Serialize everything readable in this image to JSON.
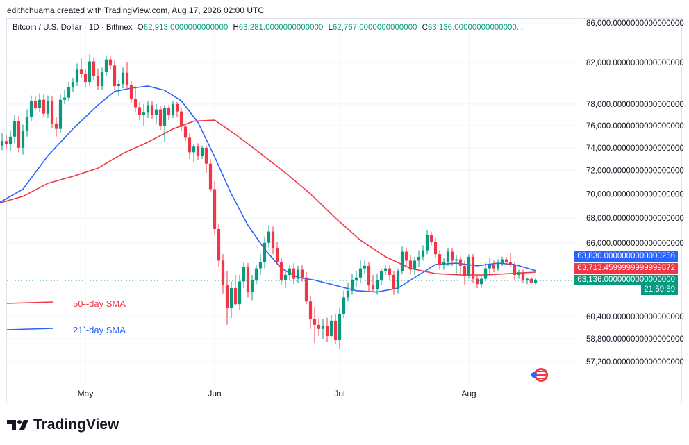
{
  "attribution": "edithchuama created with TradingView.com, Aug 17, 2026 02:00 UTC",
  "symbol": "Bitcoin / U.S. Dollar · 1D · Bitfinex",
  "ohlc": {
    "o_label": "O",
    "o_value": "62,913.0000000000000",
    "h_label": "H",
    "h_value": "63,281.0000000000000",
    "l_label": "L",
    "l_value": "62,767.0000000000000",
    "c_label": "C",
    "c_value": "63,136.00000000000000..."
  },
  "legend": {
    "sma50_label": "50--day SMA",
    "sma21_label": "21`-day SMA"
  },
  "price_boxes": {
    "sma21_value": "63,830.0000000000000256",
    "sma50_value": "63,713.4599999999999872",
    "last_price": "63,136.0000000000000000",
    "countdown": "21:59:59"
  },
  "brand": "TradingView",
  "colors": {
    "up": "#089981",
    "down": "#f23645",
    "sma50": "#f23645",
    "sma21": "#2962ff",
    "grid": "#f0f3fa",
    "axis_text": "#131722"
  },
  "chart_data": {
    "type": "candlestick",
    "y_axis_ticks": [
      "86,000.0000000000000000",
      "82,000.0000000000000000",
      "78,000.0000000000000000",
      "76,000.0000000000000000",
      "74,000.0000000000000000",
      "72,000.0000000000000000",
      "70,000.0000000000000000",
      "68,000.0000000000000000",
      "66,000.0000000000000000",
      "60,400.0000000000000000",
      "58,800.0000000000000000",
      "57,200.0000000000000000"
    ],
    "y_axis_tick_values": [
      86000,
      82000,
      78000,
      76000,
      74000,
      72000,
      70000,
      68000,
      66000,
      60400,
      58800,
      57200
    ],
    "x_axis_ticks": [
      "May",
      "Jun",
      "Jul",
      "Aug"
    ],
    "x_axis_tick_dates": [
      "2026-05-01",
      "2026-06-01",
      "2026-07-01",
      "2026-08-01"
    ],
    "scale": "log",
    "candles": [
      [
        "2026-04-10",
        70500,
        74800,
        70200,
        74200
      ],
      [
        "2026-04-11",
        74200,
        75300,
        73800,
        74600
      ],
      [
        "2026-04-12",
        74600,
        75100,
        73900,
        74300
      ],
      [
        "2026-04-13",
        74300,
        75600,
        73700,
        75000
      ],
      [
        "2026-04-14",
        75000,
        77000,
        74400,
        76400
      ],
      [
        "2026-04-15",
        76400,
        76900,
        73600,
        74000
      ],
      [
        "2026-04-16",
        74000,
        76100,
        73400,
        75500
      ],
      [
        "2026-04-17",
        75500,
        77500,
        75000,
        76800
      ],
      [
        "2026-04-18",
        76800,
        78800,
        76400,
        78300
      ],
      [
        "2026-04-19",
        78300,
        78700,
        77400,
        77600
      ],
      [
        "2026-04-20",
        77600,
        79000,
        77200,
        78400
      ],
      [
        "2026-04-21",
        78400,
        78900,
        76800,
        77100
      ],
      [
        "2026-04-22",
        77100,
        78800,
        76700,
        78300
      ],
      [
        "2026-04-23",
        78300,
        78700,
        75800,
        76200
      ],
      [
        "2026-04-24",
        76200,
        76800,
        75000,
        75700
      ],
      [
        "2026-04-25",
        75700,
        78900,
        75300,
        78400
      ],
      [
        "2026-04-26",
        78400,
        79300,
        78000,
        78600
      ],
      [
        "2026-04-27",
        78600,
        80100,
        78300,
        79600
      ],
      [
        "2026-04-28",
        79600,
        80500,
        79100,
        80100
      ],
      [
        "2026-04-29",
        80100,
        81900,
        79700,
        81300
      ],
      [
        "2026-04-30",
        81300,
        82400,
        80500,
        80900
      ],
      [
        "2026-05-01",
        80900,
        81400,
        79600,
        80100
      ],
      [
        "2026-05-02",
        80100,
        82800,
        79700,
        82100
      ],
      [
        "2026-05-03",
        82100,
        82500,
        80300,
        80700
      ],
      [
        "2026-05-04",
        80700,
        81400,
        79300,
        79700
      ],
      [
        "2026-05-05",
        79700,
        81500,
        79300,
        81100
      ],
      [
        "2026-05-06",
        81100,
        82700,
        80700,
        82300
      ],
      [
        "2026-05-07",
        82300,
        82600,
        81300,
        81700
      ],
      [
        "2026-05-08",
        81700,
        82200,
        79300,
        79700
      ],
      [
        "2026-05-09",
        79700,
        80300,
        78800,
        79900
      ],
      [
        "2026-05-10",
        79900,
        81500,
        79500,
        81000
      ],
      [
        "2026-05-11",
        81000,
        82000,
        79500,
        79800
      ],
      [
        "2026-05-12",
        79800,
        80200,
        78100,
        78500
      ],
      [
        "2026-05-13",
        78500,
        79700,
        77300,
        77700
      ],
      [
        "2026-05-14",
        77700,
        78200,
        76500,
        77000
      ],
      [
        "2026-05-15",
        77000,
        78000,
        76000,
        77200
      ],
      [
        "2026-05-16",
        77200,
        78300,
        76700,
        77900
      ],
      [
        "2026-05-17",
        77900,
        78300,
        76600,
        77000
      ],
      [
        "2026-05-18",
        77000,
        78000,
        76200,
        77500
      ],
      [
        "2026-05-19",
        77500,
        77800,
        75600,
        76000
      ],
      [
        "2026-05-20",
        76000,
        77900,
        74500,
        77600
      ],
      [
        "2026-05-21",
        77600,
        77900,
        76500,
        77000
      ],
      [
        "2026-05-22",
        77000,
        78300,
        76700,
        78000
      ],
      [
        "2026-05-23",
        78000,
        78200,
        76800,
        77300
      ],
      [
        "2026-05-24",
        77300,
        77600,
        75500,
        75900
      ],
      [
        "2026-05-25",
        75900,
        76200,
        74600,
        74900
      ],
      [
        "2026-05-26",
        74900,
        75300,
        73000,
        73600
      ],
      [
        "2026-05-27",
        73600,
        74300,
        72700,
        74100
      ],
      [
        "2026-05-28",
        74100,
        74400,
        72900,
        73300
      ],
      [
        "2026-05-29",
        73300,
        74200,
        73000,
        74000
      ],
      [
        "2026-05-30",
        74000,
        74200,
        71800,
        72600
      ],
      [
        "2026-05-31",
        72600,
        73000,
        70200,
        70400
      ],
      [
        "2026-06-01",
        70400,
        71100,
        66600,
        67100
      ],
      [
        "2026-06-02",
        67100,
        67500,
        64100,
        64600
      ],
      [
        "2026-06-03",
        64600,
        65100,
        62100,
        62700
      ],
      [
        "2026-06-04",
        62700,
        63800,
        59800,
        61000
      ],
      [
        "2026-06-05",
        61000,
        63000,
        60300,
        62500
      ],
      [
        "2026-06-06",
        62500,
        63500,
        61200,
        61300
      ],
      [
        "2026-06-07",
        61300,
        63500,
        60900,
        63000
      ],
      [
        "2026-06-08",
        63000,
        64500,
        62500,
        64100
      ],
      [
        "2026-06-09",
        64100,
        64400,
        61800,
        62200
      ],
      [
        "2026-06-10",
        62200,
        63500,
        61600,
        63100
      ],
      [
        "2026-06-11",
        63100,
        64300,
        62800,
        64000
      ],
      [
        "2026-06-12",
        64000,
        65100,
        63500,
        64500
      ],
      [
        "2026-06-13",
        64500,
        66500,
        64000,
        66000
      ],
      [
        "2026-06-14",
        66000,
        67400,
        65600,
        66900
      ],
      [
        "2026-06-15",
        66900,
        67300,
        65100,
        65600
      ],
      [
        "2026-06-16",
        65600,
        66100,
        64300,
        64500
      ],
      [
        "2026-06-17",
        64500,
        64800,
        62700,
        63100
      ],
      [
        "2026-06-18",
        63100,
        63900,
        62500,
        63500
      ],
      [
        "2026-06-19",
        63500,
        64300,
        63100,
        64000
      ],
      [
        "2026-06-20",
        64000,
        64400,
        62800,
        63200
      ],
      [
        "2026-06-21",
        63200,
        64200,
        62900,
        63900
      ],
      [
        "2026-06-22",
        63900,
        64300,
        63000,
        63300
      ],
      [
        "2026-06-23",
        63300,
        63700,
        61300,
        61500
      ],
      [
        "2026-06-24",
        61500,
        61900,
        59500,
        60200
      ],
      [
        "2026-06-25",
        60200,
        61100,
        58500,
        59800
      ],
      [
        "2026-06-26",
        59800,
        60300,
        59000,
        59500
      ],
      [
        "2026-06-27",
        59500,
        60200,
        58800,
        59700
      ],
      [
        "2026-06-28",
        59700,
        60300,
        58600,
        59000
      ],
      [
        "2026-06-29",
        59000,
        60500,
        58900,
        60100
      ],
      [
        "2026-06-30",
        60100,
        60600,
        58400,
        58700
      ],
      [
        "2026-07-01",
        58700,
        61000,
        58100,
        60600
      ],
      [
        "2026-07-02",
        60600,
        62300,
        60300,
        61800
      ],
      [
        "2026-07-03",
        61800,
        62900,
        61500,
        62300
      ],
      [
        "2026-07-04",
        62300,
        63600,
        62000,
        63100
      ],
      [
        "2026-07-05",
        63100,
        63800,
        62600,
        63300
      ],
      [
        "2026-07-06",
        63300,
        64600,
        62900,
        64000
      ],
      [
        "2026-07-07",
        64000,
        64600,
        63600,
        64200
      ],
      [
        "2026-07-08",
        64200,
        64500,
        62200,
        62700
      ],
      [
        "2026-07-09",
        62700,
        63500,
        62200,
        62400
      ],
      [
        "2026-07-10",
        62400,
        63600,
        62000,
        63100
      ],
      [
        "2026-07-11",
        63100,
        64000,
        62700,
        63800
      ],
      [
        "2026-07-12",
        63800,
        64300,
        63500,
        64000
      ],
      [
        "2026-07-13",
        64000,
        64300,
        63100,
        63500
      ],
      [
        "2026-07-14",
        63500,
        63800,
        62000,
        62400
      ],
      [
        "2026-07-15",
        62400,
        64000,
        62100,
        63800
      ],
      [
        "2026-07-16",
        63800,
        65700,
        63600,
        65300
      ],
      [
        "2026-07-17",
        65300,
        65600,
        64200,
        64600
      ],
      [
        "2026-07-18",
        64600,
        65000,
        63600,
        63900
      ],
      [
        "2026-07-19",
        63900,
        64900,
        63500,
        64600
      ],
      [
        "2026-07-20",
        64600,
        65400,
        64100,
        64900
      ],
      [
        "2026-07-21",
        64900,
        65800,
        64600,
        65400
      ],
      [
        "2026-07-22",
        65400,
        67000,
        65100,
        66600
      ],
      [
        "2026-07-23",
        66600,
        66900,
        65800,
        66100
      ],
      [
        "2026-07-24",
        66100,
        66400,
        64800,
        65100
      ],
      [
        "2026-07-25",
        65100,
        65400,
        63900,
        64300
      ],
      [
        "2026-07-26",
        64300,
        64800,
        63900,
        64500
      ],
      [
        "2026-07-27",
        64500,
        65600,
        64200,
        65300
      ],
      [
        "2026-07-28",
        65300,
        65600,
        64200,
        64600
      ],
      [
        "2026-07-29",
        64600,
        65000,
        63500,
        64700
      ],
      [
        "2026-07-30",
        64700,
        64900,
        63600,
        64200
      ],
      [
        "2026-07-31",
        64200,
        64600,
        62700,
        63400
      ],
      [
        "2026-08-01",
        63400,
        65100,
        63200,
        64900
      ],
      [
        "2026-08-02",
        64900,
        65100,
        62900,
        63200
      ],
      [
        "2026-08-03",
        63200,
        63500,
        62500,
        62800
      ],
      [
        "2026-08-04",
        62800,
        63500,
        62500,
        63200
      ],
      [
        "2026-08-05",
        63200,
        64400,
        63000,
        64000
      ],
      [
        "2026-08-06",
        64000,
        64800,
        63600,
        64300
      ],
      [
        "2026-08-07",
        64300,
        64600,
        63700,
        64000
      ],
      [
        "2026-08-08",
        64000,
        64700,
        63800,
        64400
      ],
      [
        "2026-08-09",
        64400,
        64900,
        64200,
        64700
      ],
      [
        "2026-08-10",
        64700,
        64900,
        64300,
        64500
      ],
      [
        "2026-08-11",
        64500,
        65200,
        64100,
        64300
      ],
      [
        "2026-08-12",
        64300,
        64500,
        63100,
        63500
      ],
      [
        "2026-08-13",
        63500,
        63900,
        63200,
        63700
      ],
      [
        "2026-08-14",
        63700,
        63900,
        62900,
        63100
      ],
      [
        "2026-08-15",
        63100,
        63300,
        62800,
        63200
      ],
      [
        "2026-08-16",
        63200,
        63300,
        62900,
        62913
      ],
      [
        "2026-08-17",
        62913,
        63281,
        62767,
        63136
      ]
    ],
    "sma21": [
      [
        "2026-04-10",
        69200
      ],
      [
        "2026-04-16",
        70400
      ],
      [
        "2026-04-22",
        73300
      ],
      [
        "2026-04-28",
        75700
      ],
      [
        "2026-05-04",
        77900
      ],
      [
        "2026-05-08",
        79200
      ],
      [
        "2026-05-12",
        79500
      ],
      [
        "2026-05-16",
        79700
      ],
      [
        "2026-05-20",
        79300
      ],
      [
        "2026-05-24",
        78300
      ],
      [
        "2026-05-28",
        76300
      ],
      [
        "2026-06-01",
        73200
      ],
      [
        "2026-06-05",
        70000
      ],
      [
        "2026-06-09",
        67400
      ],
      [
        "2026-06-13",
        65500
      ],
      [
        "2026-06-17",
        64000
      ],
      [
        "2026-06-21",
        63300
      ],
      [
        "2026-06-25",
        63100
      ],
      [
        "2026-06-30",
        62700
      ],
      [
        "2026-07-05",
        62300
      ],
      [
        "2026-07-10",
        62200
      ],
      [
        "2026-07-15",
        62500
      ],
      [
        "2026-07-20",
        63500
      ],
      [
        "2026-07-24",
        64300
      ],
      [
        "2026-07-29",
        64400
      ],
      [
        "2026-08-03",
        64200
      ],
      [
        "2026-08-08",
        64400
      ],
      [
        "2026-08-12",
        64300
      ],
      [
        "2026-08-17",
        63830
      ]
    ],
    "sma50": [
      [
        "2026-04-10",
        69200
      ],
      [
        "2026-04-16",
        69800
      ],
      [
        "2026-04-22",
        70900
      ],
      [
        "2026-04-28",
        71500
      ],
      [
        "2026-05-04",
        72200
      ],
      [
        "2026-05-10",
        73500
      ],
      [
        "2026-05-16",
        74500
      ],
      [
        "2026-05-22",
        75700
      ],
      [
        "2026-05-27",
        76400
      ],
      [
        "2026-06-01",
        76500
      ],
      [
        "2026-06-06",
        75200
      ],
      [
        "2026-06-12",
        73500
      ],
      [
        "2026-06-18",
        71800
      ],
      [
        "2026-06-24",
        70000
      ],
      [
        "2026-06-30",
        68000
      ],
      [
        "2026-07-06",
        66200
      ],
      [
        "2026-07-12",
        64900
      ],
      [
        "2026-07-18",
        64000
      ],
      [
        "2026-07-24",
        63600
      ],
      [
        "2026-07-30",
        63500
      ],
      [
        "2026-08-05",
        63500
      ],
      [
        "2026-08-11",
        63600
      ],
      [
        "2026-08-17",
        63713
      ]
    ]
  }
}
